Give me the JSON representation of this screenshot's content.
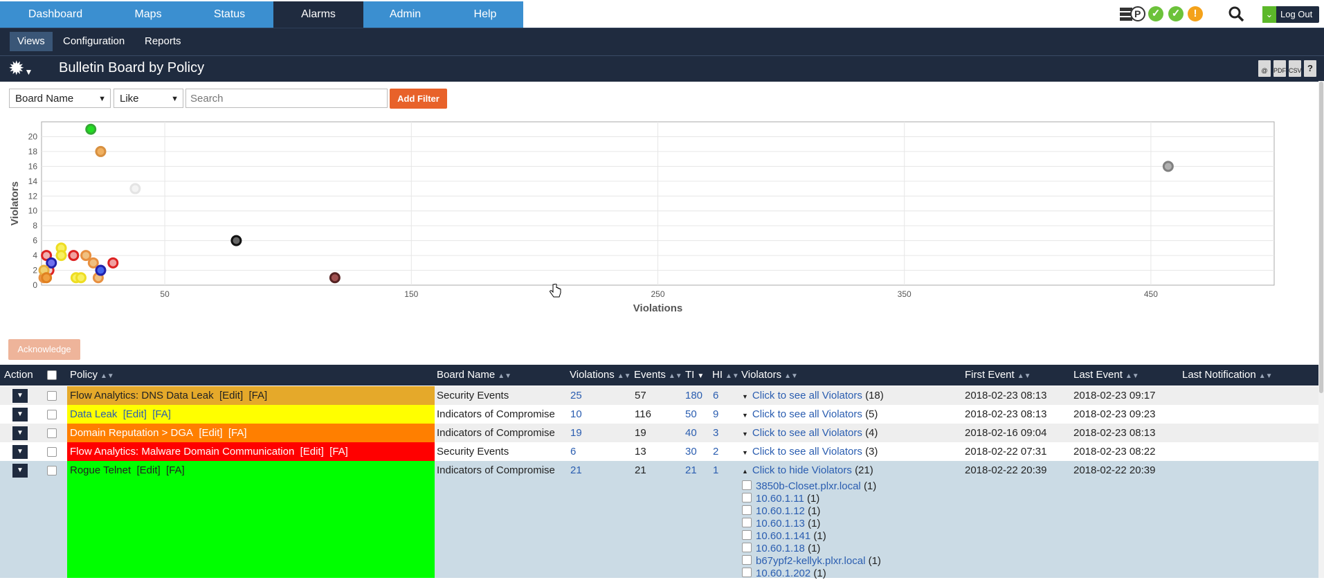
{
  "nav": {
    "tabs": [
      {
        "label": "Dashboard"
      },
      {
        "label": "Maps"
      },
      {
        "label": "Status"
      },
      {
        "label": "Alarms"
      },
      {
        "label": "Admin"
      },
      {
        "label": "Help"
      }
    ],
    "active_tab": "Alarms",
    "status_icons": [
      "server-p-icon",
      "check-icon",
      "check-icon",
      "warning-icon"
    ],
    "logout_label": "Log Out"
  },
  "subnav": {
    "items": [
      {
        "label": "Views"
      },
      {
        "label": "Configuration"
      },
      {
        "label": "Reports"
      }
    ],
    "active": "Views"
  },
  "page": {
    "title": "Bulletin Board by Policy",
    "export_icons": [
      "email-icon",
      "pdf-icon",
      "csv-icon",
      "help-icon"
    ],
    "export_labels": {
      "email": "@",
      "pdf": "PDF",
      "csv": "CSV",
      "help": "?"
    }
  },
  "filter": {
    "field_select": "Board Name",
    "operator_select": "Like",
    "search_placeholder": "Search",
    "add_filter_label": "Add Filter"
  },
  "chart_data": {
    "type": "scatter",
    "xlabel": "Violations",
    "ylabel": "Violators",
    "xlim": [
      0,
      500
    ],
    "ylim": [
      0,
      22
    ],
    "x_ticks": [
      50,
      150,
      250,
      350,
      450
    ],
    "y_ticks": [
      0,
      2,
      4,
      6,
      8,
      10,
      12,
      14,
      16,
      18,
      20
    ],
    "grid": true,
    "points": [
      {
        "x": 20,
        "y": 21,
        "color": "#22dd22",
        "stroke": "#33aa33"
      },
      {
        "x": 24,
        "y": 18,
        "color": "#f0b060",
        "stroke": "#d89040"
      },
      {
        "x": 38,
        "y": 13,
        "color": "#f4f4f4",
        "stroke": "#e4e4e4"
      },
      {
        "x": 79,
        "y": 6,
        "color": "#666666",
        "stroke": "#111111"
      },
      {
        "x": 119,
        "y": 1,
        "color": "#a05050",
        "stroke": "#552222"
      },
      {
        "x": 457,
        "y": 16,
        "color": "#b0b0b0",
        "stroke": "#808080"
      },
      {
        "x": 2,
        "y": 4,
        "color": "#f0b0b0",
        "stroke": "#dd2222"
      },
      {
        "x": 3,
        "y": 2,
        "color": "#f0d0d0",
        "stroke": "#dd2222"
      },
      {
        "x": 4,
        "y": 3,
        "color": "#7070ee",
        "stroke": "#2222aa"
      },
      {
        "x": 8,
        "y": 5,
        "color": "#f8f060",
        "stroke": "#eedd22"
      },
      {
        "x": 8,
        "y": 4,
        "color": "#f8f060",
        "stroke": "#eedd22"
      },
      {
        "x": 13,
        "y": 4,
        "color": "#f0a0a0",
        "stroke": "#dd2222"
      },
      {
        "x": 14,
        "y": 1,
        "color": "#f8f060",
        "stroke": "#eedd22"
      },
      {
        "x": 16,
        "y": 1,
        "color": "#f8f060",
        "stroke": "#eedd22"
      },
      {
        "x": 18,
        "y": 4,
        "color": "#f0c080",
        "stroke": "#e89040"
      },
      {
        "x": 21,
        "y": 3,
        "color": "#f0c080",
        "stroke": "#e89040"
      },
      {
        "x": 23,
        "y": 1,
        "color": "#f0c080",
        "stroke": "#e89040"
      },
      {
        "x": 24,
        "y": 2,
        "color": "#4466ee",
        "stroke": "#2222aa"
      },
      {
        "x": 29,
        "y": 3,
        "color": "#f0a0a0",
        "stroke": "#dd2222"
      },
      {
        "x": 1,
        "y": 1,
        "color": "#f0b060",
        "stroke": "#e89040"
      },
      {
        "x": 1,
        "y": 2,
        "color": "#f0d070",
        "stroke": "#e8b040"
      },
      {
        "x": 2,
        "y": 1,
        "color": "#f0a040",
        "stroke": "#e08020"
      }
    ]
  },
  "acknowledge_label": "Acknowledge",
  "table": {
    "headers": {
      "action": "Action",
      "policy": "Policy",
      "board": "Board Name",
      "violations": "Violations",
      "events": "Events",
      "ti": "TI",
      "hi": "HI",
      "violators": "Violators",
      "first": "First Event",
      "last": "Last Event",
      "notification": "Last Notification"
    },
    "rows": [
      {
        "policy": "Flow Analytics: DNS Data Leak",
        "edit": "[Edit]",
        "fa": "[FA]",
        "color": "#e5a92a",
        "text_color": "#222222",
        "board": "Security Events",
        "violations": "25",
        "events": "57",
        "ti": "180",
        "hi": "6",
        "violators": "Click to see all Violators",
        "violators_count": "(18)",
        "first": "2018-02-23 08:13",
        "last": "2018-02-23 09:17",
        "expanded": false
      },
      {
        "policy": "Data Leak",
        "edit": "[Edit]",
        "fa": "[FA]",
        "color": "#ffff00",
        "text_color": "#2a5db0",
        "board": "Indicators of Compromise",
        "violations": "10",
        "events": "116",
        "ti": "50",
        "hi": "9",
        "violators": "Click to see all Violators",
        "violators_count": "(5)",
        "first": "2018-02-23 08:13",
        "last": "2018-02-23 09:23",
        "expanded": false
      },
      {
        "policy": "Domain Reputation > DGA",
        "edit": "[Edit]",
        "fa": "[FA]",
        "color": "#ff7f00",
        "text_color": "#ffffff",
        "board": "Indicators of Compromise",
        "violations": "19",
        "events": "19",
        "ti": "40",
        "hi": "3",
        "violators": "Click to see all Violators",
        "violators_count": "(4)",
        "first": "2018-02-16 09:04",
        "last": "2018-02-23 08:13",
        "expanded": false
      },
      {
        "policy": "Flow Analytics: Malware Domain Communication",
        "edit": "[Edit]",
        "fa": "[FA]",
        "color": "#ff0000",
        "text_color": "#ffffff",
        "board": "Security Events",
        "violations": "6",
        "events": "13",
        "ti": "30",
        "hi": "2",
        "violators": "Click to see all Violators",
        "violators_count": "(3)",
        "first": "2018-02-22 07:31",
        "last": "2018-02-23 08:22",
        "expanded": false
      },
      {
        "policy": "Rogue Telnet",
        "edit": "[Edit]",
        "fa": "[FA]",
        "color": "#00ff00",
        "text_color": "#222222",
        "board": "Indicators of Compromise",
        "violations": "21",
        "events": "21",
        "ti": "21",
        "hi": "1",
        "violators": "Click to hide Violators",
        "violators_count": "(21)",
        "first": "2018-02-22 20:39",
        "last": "2018-02-22 20:39",
        "expanded": true
      }
    ],
    "violator_list": [
      {
        "host": "3850b-Closet.plxr.local",
        "count": "(1)"
      },
      {
        "host": "10.60.1.11",
        "count": "(1)"
      },
      {
        "host": "10.60.1.12",
        "count": "(1)"
      },
      {
        "host": "10.60.1.13",
        "count": "(1)"
      },
      {
        "host": "10.60.1.141",
        "count": "(1)"
      },
      {
        "host": "10.60.1.18",
        "count": "(1)"
      },
      {
        "host": "b67ypf2-kellyk.plxr.local",
        "count": "(1)"
      },
      {
        "host": "10.60.1.202",
        "count": "(1)"
      }
    ]
  }
}
